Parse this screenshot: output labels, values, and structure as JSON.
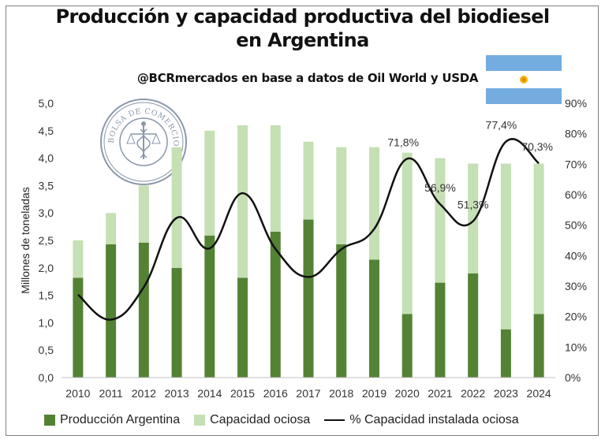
{
  "title_line1": "Producción y capacidad productiva del biodiesel",
  "title_line2": "en Argentina",
  "subtitle": "@BCRmercados en base a datos de Oil World y USDA",
  "seal_text": "BOLSA DE COMERCIO DE ROSARIO",
  "chart_data": {
    "type": "bar",
    "stacked": true,
    "categories": [
      "2010",
      "2011",
      "2012",
      "2013",
      "2014",
      "2015",
      "2016",
      "2017",
      "2018",
      "2019",
      "2020",
      "2021",
      "2022",
      "2023",
      "2024"
    ],
    "series": [
      {
        "name": "Producción Argentina",
        "color": "#548235",
        "axis": "left",
        "values": [
          1.82,
          2.43,
          2.46,
          2.0,
          2.59,
          1.82,
          2.66,
          2.88,
          2.43,
          2.15,
          1.16,
          1.73,
          1.9,
          0.88,
          1.16
        ]
      },
      {
        "name": "Capacidad ociosa",
        "color": "#c5e0b4",
        "axis": "left",
        "values": [
          0.68,
          0.57,
          1.04,
          2.2,
          1.91,
          2.78,
          1.94,
          1.42,
          1.77,
          2.05,
          2.94,
          2.27,
          2.0,
          3.02,
          2.74
        ]
      },
      {
        "name": "% Capacidad instalada ociosa",
        "color": "#111111",
        "type": "line",
        "axis": "right",
        "values": [
          27.2,
          19.0,
          29.7,
          52.4,
          42.4,
          60.5,
          42.2,
          33.0,
          42.1,
          48.8,
          71.8,
          56.9,
          51.3,
          77.4,
          70.3
        ]
      }
    ],
    "ylabel": "Millones de toneladas",
    "ylim": [
      0,
      5
    ],
    "yticks": [
      "0,0",
      "0,5",
      "1,0",
      "1,5",
      "2,0",
      "2,5",
      "3,0",
      "3,5",
      "4,0",
      "4,5",
      "5,0"
    ],
    "y2lim": [
      0,
      90
    ],
    "y2ticks": [
      "0%",
      "10%",
      "20%",
      "30%",
      "40%",
      "50%",
      "60%",
      "70%",
      "80%",
      "90%"
    ],
    "data_labels": [
      {
        "index": 10,
        "text": "71,8%"
      },
      {
        "index": 11,
        "text": "56,9%"
      },
      {
        "index": 12,
        "text": "51,3%"
      },
      {
        "index": 13,
        "text": "77,4%"
      },
      {
        "index": 14,
        "text": "70,3%"
      }
    ],
    "grid": false,
    "legend_position": "bottom"
  },
  "colors": {
    "flag_blue": "#74acdf",
    "flag_white": "#ffffff",
    "flag_sun": "#f6b40e",
    "seal": "#6d7f95"
  },
  "icons": {
    "flag": "argentina-flag-icon",
    "seal": "bcr-seal-logo"
  }
}
